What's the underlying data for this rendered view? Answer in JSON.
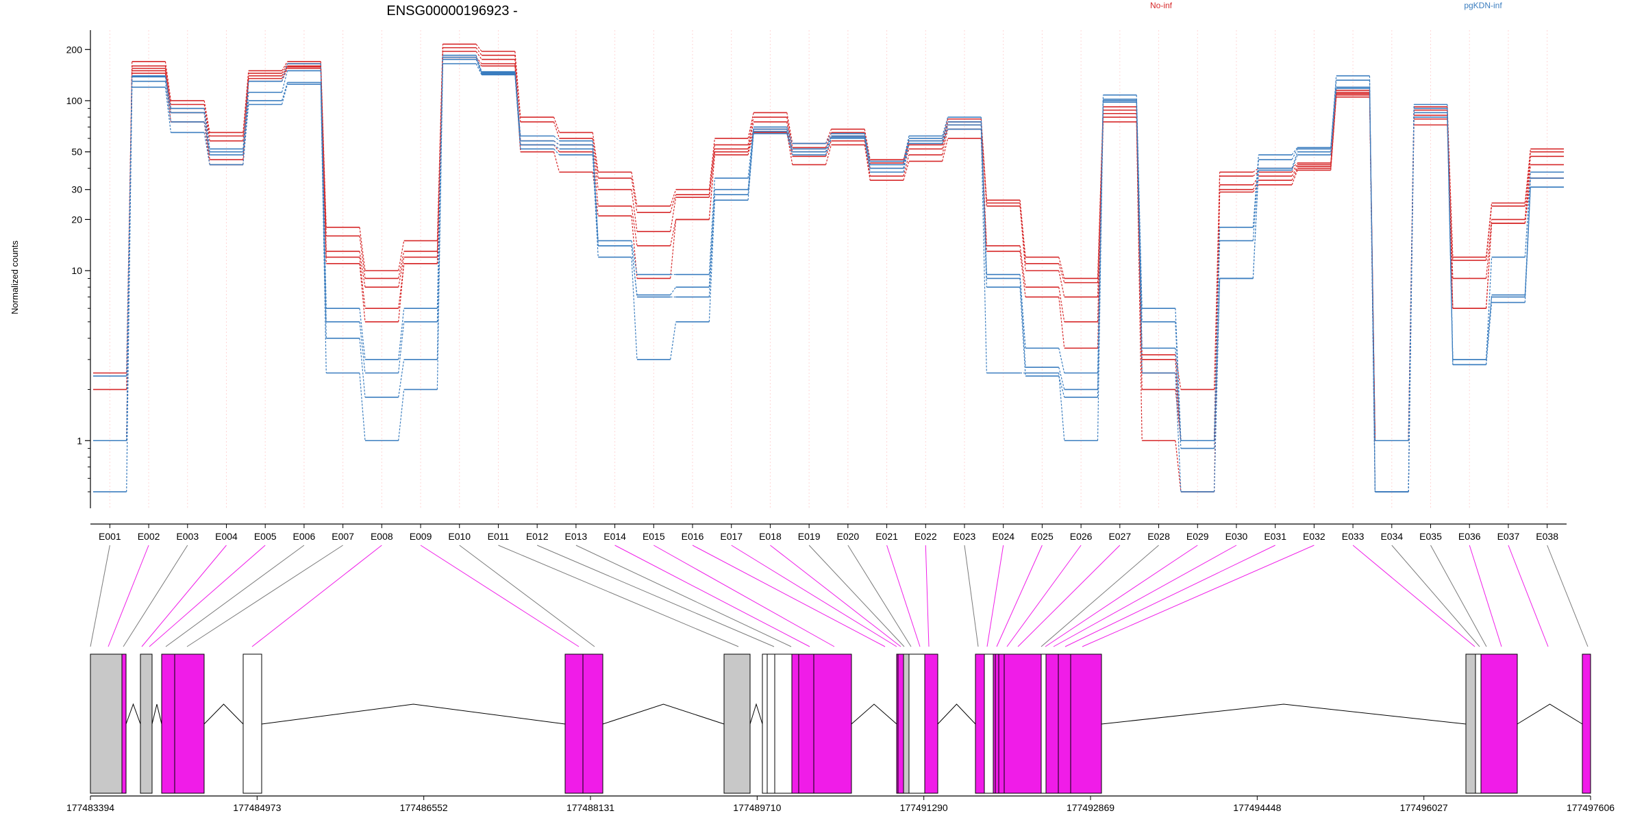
{
  "title": "ENSG00000196923 -",
  "legend": [
    {
      "label": "No-inf",
      "color": "#d62728"
    },
    {
      "label": "pgKDN-inf",
      "color": "#3a7dbf"
    }
  ],
  "colors": {
    "no_inf": "#d62728",
    "pgkdn_inf": "#3a7dbf",
    "highlight_exon": "#f01ce8",
    "normal_exon": "#c8c8c8",
    "axis": "#000000",
    "grid": "#ffd6d6"
  },
  "chart_data": {
    "type": "line",
    "title": "ENSG00000196923 -",
    "ylabel": "Normalized counts",
    "yscale": "log",
    "ylim": [
      0.4,
      260
    ],
    "yticks": [
      1,
      10,
      20,
      30,
      50,
      100,
      200
    ],
    "legend_position": "top",
    "categories": [
      "E001",
      "E002",
      "E003",
      "E004",
      "E005",
      "E006",
      "E007",
      "E008",
      "E009",
      "E010",
      "E011",
      "E012",
      "E013",
      "E014",
      "E015",
      "E016",
      "E017",
      "E018",
      "E019",
      "E020",
      "E021",
      "E022",
      "E023",
      "E024",
      "E025",
      "E026",
      "E027",
      "E028",
      "E029",
      "E030",
      "E031",
      "E032",
      "E033",
      "E034",
      "E035",
      "E036",
      "E037",
      "E038"
    ],
    "highlighted_exons": [
      "E002",
      "E004",
      "E005",
      "E008",
      "E009",
      "E014",
      "E015",
      "E016",
      "E017",
      "E018",
      "E021",
      "E022",
      "E024",
      "E025",
      "E026",
      "E027",
      "E029",
      "E030",
      "E031",
      "E032",
      "E033",
      "E036",
      "E037"
    ],
    "series": [
      {
        "group": "No-inf",
        "values": [
          1.0,
          170,
          100,
          65,
          150,
          170,
          18,
          10,
          15,
          215,
          195,
          80,
          65,
          38,
          24,
          30,
          60,
          85,
          56,
          68,
          45,
          58,
          78,
          26,
          12,
          9,
          92,
          3.2,
          2.0,
          38,
          40,
          43,
          115,
          1.0,
          92,
          12,
          25,
          52
        ]
      },
      {
        "group": "No-inf",
        "values": [
          2.0,
          160,
          95,
          62,
          145,
          165,
          16,
          9,
          13,
          205,
          185,
          75,
          60,
          35,
          22,
          28,
          55,
          80,
          53,
          65,
          43,
          55,
          75,
          25,
          11,
          8.5,
          88,
          3.0,
          1.0,
          36,
          38,
          42,
          112,
          1.0,
          88,
          11.5,
          24,
          50
        ]
      },
      {
        "group": "No-inf",
        "values": [
          2.5,
          155,
          90,
          58,
          140,
          160,
          13,
          8,
          12,
          195,
          175,
          58,
          55,
          30,
          17,
          27,
          52,
          75,
          50,
          62,
          40,
          52,
          72,
          24,
          10,
          7,
          84,
          2.5,
          1.0,
          32,
          36,
          41,
          110,
          0.5,
          82,
          9,
          20,
          47
        ]
      },
      {
        "group": "No-inf",
        "values": [
          1.0,
          150,
          85,
          45,
          135,
          158,
          12,
          6,
          11,
          180,
          165,
          55,
          50,
          24,
          14,
          20,
          50,
          68,
          47,
          58,
          36,
          48,
          68,
          14,
          8,
          5,
          80,
          2.0,
          1.0,
          30,
          34,
          40,
          108,
          1.0,
          78,
          6,
          19,
          42
        ]
      },
      {
        "group": "No-inf",
        "values": [
          1.0,
          145,
          75,
          42,
          130,
          155,
          11,
          5,
          11,
          175,
          160,
          50,
          38,
          21,
          9,
          20,
          48,
          65,
          42,
          55,
          34,
          44,
          60,
          13,
          7,
          3.5,
          75,
          1.0,
          0.5,
          29,
          32,
          39,
          105,
          1.0,
          72,
          6,
          19,
          35
        ]
      },
      {
        "group": "pgKDN-inf",
        "values": [
          2.4,
          140,
          90,
          52,
          130,
          165,
          6,
          3,
          6,
          185,
          148,
          62,
          58,
          15,
          9.5,
          9.5,
          35,
          70,
          56,
          64,
          44,
          62,
          80,
          9.5,
          3.5,
          2.5,
          108,
          6,
          1.0,
          18,
          48,
          53,
          140,
          0.5,
          95,
          3.0,
          12,
          38
        ]
      },
      {
        "group": "pgKDN-inf",
        "values": [
          1.0,
          138,
          85,
          50,
          112,
          150,
          5,
          2.5,
          5,
          180,
          146,
          58,
          55,
          14,
          7.2,
          8,
          30,
          68,
          52,
          62,
          42,
          60,
          75,
          9,
          2.7,
          2.0,
          102,
          5,
          1.0,
          15,
          45,
          52,
          132,
          0.5,
          90,
          3.0,
          7.2,
          35
        ]
      },
      {
        "group": "pgKDN-inf",
        "values": [
          0.5,
          130,
          75,
          48,
          100,
          128,
          4,
          1.8,
          3,
          175,
          144,
          55,
          52,
          14,
          7,
          7,
          28,
          66,
          50,
          61,
          40,
          58,
          72,
          8,
          2.4,
          1.8,
          100,
          3.5,
          0.9,
          9,
          40,
          50,
          120,
          0.5,
          85,
          2.8,
          7,
          31
        ]
      },
      {
        "group": "pgKDN-inf",
        "values": [
          1.0,
          120,
          65,
          42,
          95,
          125,
          2.5,
          1.0,
          2.0,
          165,
          142,
          52,
          48,
          12,
          3.0,
          5,
          26,
          64,
          48,
          60,
          38,
          56,
          68,
          2.5,
          2.5,
          1.0,
          98,
          2.5,
          0.5,
          9,
          39,
          48,
          118,
          1.0,
          80,
          2.8,
          6.5,
          31
        ]
      }
    ]
  },
  "gene_model": {
    "coordinates": [
      "177483394",
      "177484973",
      "177486552",
      "177488131",
      "177489710",
      "177491290",
      "177492869",
      "177494448",
      "177496027",
      "177497606"
    ]
  }
}
